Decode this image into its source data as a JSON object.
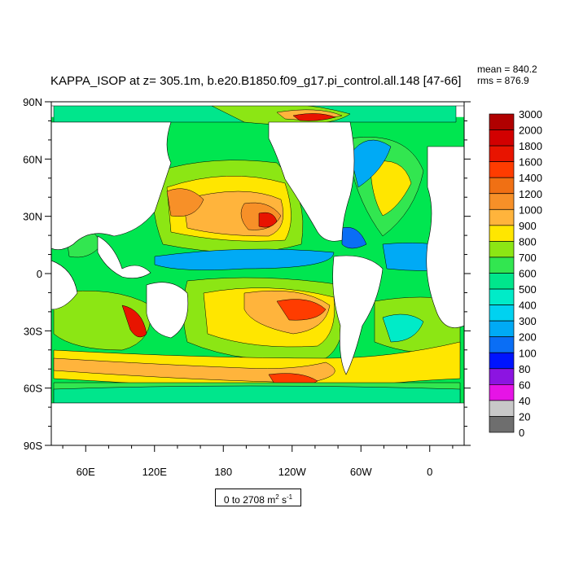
{
  "title": "KAPPA_ISOP at z= 305.1m, b.e20.B1850.f09_g17.pi_control.all.148 [47-66]",
  "stats": {
    "mean": "mean = 840.2",
    "rms": "rms = 876.9"
  },
  "range_label": {
    "text": "0 to 2708 m",
    "sup": "2",
    "tail": " s",
    "sup2": "-1"
  },
  "map": {
    "lon_range": [
      30,
      390
    ],
    "lat_range": [
      -90,
      90
    ],
    "lat_ticks": [
      {
        "value": 90,
        "label": "90N"
      },
      {
        "value": 60,
        "label": "60N"
      },
      {
        "value": 30,
        "label": "30N"
      },
      {
        "value": 0,
        "label": "0"
      },
      {
        "value": -30,
        "label": "30S"
      },
      {
        "value": -60,
        "label": "60S"
      },
      {
        "value": -90,
        "label": "90S"
      }
    ],
    "lon_ticks": [
      {
        "value": 60,
        "label": "60E"
      },
      {
        "value": 120,
        "label": "120E"
      },
      {
        "value": 180,
        "label": "180"
      },
      {
        "value": 240,
        "label": "120W"
      },
      {
        "value": 300,
        "label": "60W"
      },
      {
        "value": 360,
        "label": "0"
      }
    ]
  },
  "colorbar": {
    "levels": [
      "3000",
      "2000",
      "1800",
      "1600",
      "1400",
      "1200",
      "1000",
      "900",
      "800",
      "700",
      "600",
      "500",
      "400",
      "300",
      "200",
      "100",
      "80",
      "60",
      "40",
      "20",
      "0"
    ],
    "colors": [
      "#b00000",
      "#d20000",
      "#e81400",
      "#ff3c00",
      "#f07014",
      "#f79028",
      "#ffb43c",
      "#ffe600",
      "#8ce614",
      "#32e650",
      "#00e68c",
      "#00ebc8",
      "#00d2f0",
      "#00aaf5",
      "#0a6ef5",
      "#0014ff",
      "#8c14e1",
      "#e614e6",
      "#c8c8c8",
      "#6e6e6e"
    ]
  },
  "palette": {
    "ocean_base": "#00e650",
    "contour": "#000000"
  }
}
